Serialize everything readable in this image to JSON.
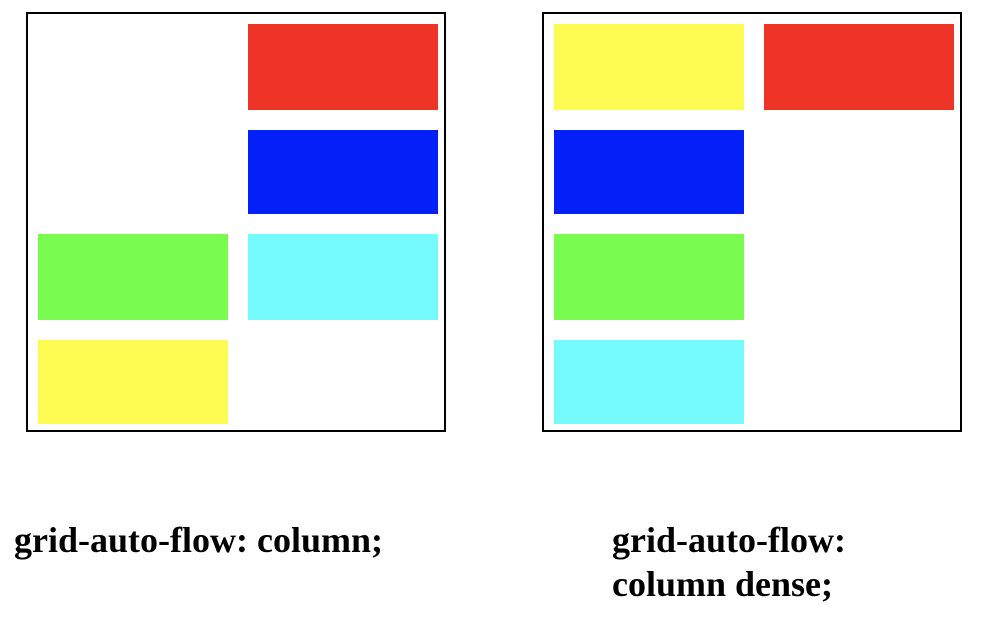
{
  "colors": {
    "red": "#ee3427",
    "blue": "#0220f7",
    "green": "#79fb50",
    "cyan": "#75fbfd",
    "yellow": "#fefb52"
  },
  "panels": [
    {
      "caption_lines": [
        "grid-auto-flow: column;"
      ],
      "items": [
        {
          "color": "red",
          "column": 2,
          "row": 1
        },
        {
          "color": "blue",
          "column": 2,
          "row": 2
        },
        {
          "color": "green",
          "column": 1,
          "row": 3
        },
        {
          "color": "cyan",
          "column": 2,
          "row": 3
        },
        {
          "color": "yellow",
          "column": 1,
          "row": 4
        }
      ]
    },
    {
      "caption_lines": [
        "grid-auto-flow:",
        "column dense;"
      ],
      "items": [
        {
          "color": "yellow",
          "column": 1,
          "row": 1
        },
        {
          "color": "red",
          "column": 2,
          "row": 1
        },
        {
          "color": "blue",
          "column": 1,
          "row": 2
        },
        {
          "color": "green",
          "column": 1,
          "row": 3
        },
        {
          "color": "cyan",
          "column": 1,
          "row": 4
        }
      ]
    }
  ]
}
